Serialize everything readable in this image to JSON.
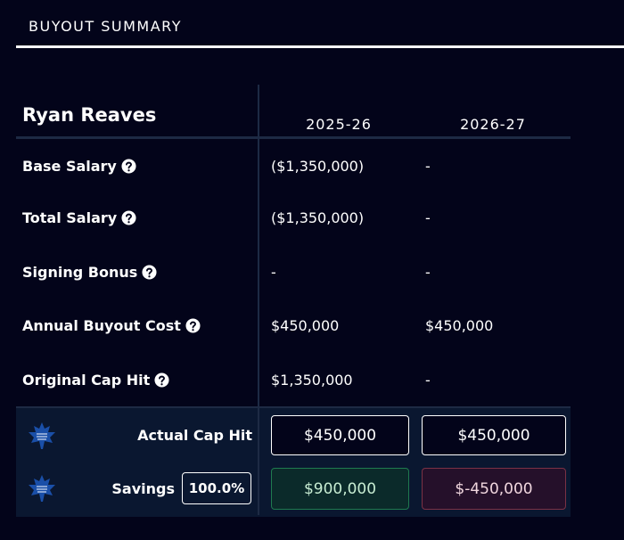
{
  "header": {
    "title": "BUYOUT SUMMARY"
  },
  "table": {
    "player": "Ryan Reaves",
    "columns": [
      "2025-26",
      "2026-27"
    ],
    "rows": [
      {
        "label": "Base Salary",
        "values": [
          "($1,350,000)",
          "-"
        ]
      },
      {
        "label": "Total Salary",
        "values": [
          "($1,350,000)",
          "-"
        ]
      },
      {
        "label": "Signing Bonus",
        "values": [
          "-",
          "-"
        ]
      },
      {
        "label": "Annual Buyout Cost",
        "values": [
          "$450,000",
          "$450,000"
        ]
      },
      {
        "label": "Original Cap Hit",
        "values": [
          "$1,350,000",
          "-"
        ]
      }
    ]
  },
  "summary": {
    "actual_cap_hit": {
      "label": "Actual Cap Hit",
      "values": [
        "$450,000",
        "$450,000"
      ]
    },
    "savings": {
      "label": "Savings",
      "percent": "100.0%",
      "values": [
        "$900,000",
        "$-450,000"
      ]
    }
  }
}
